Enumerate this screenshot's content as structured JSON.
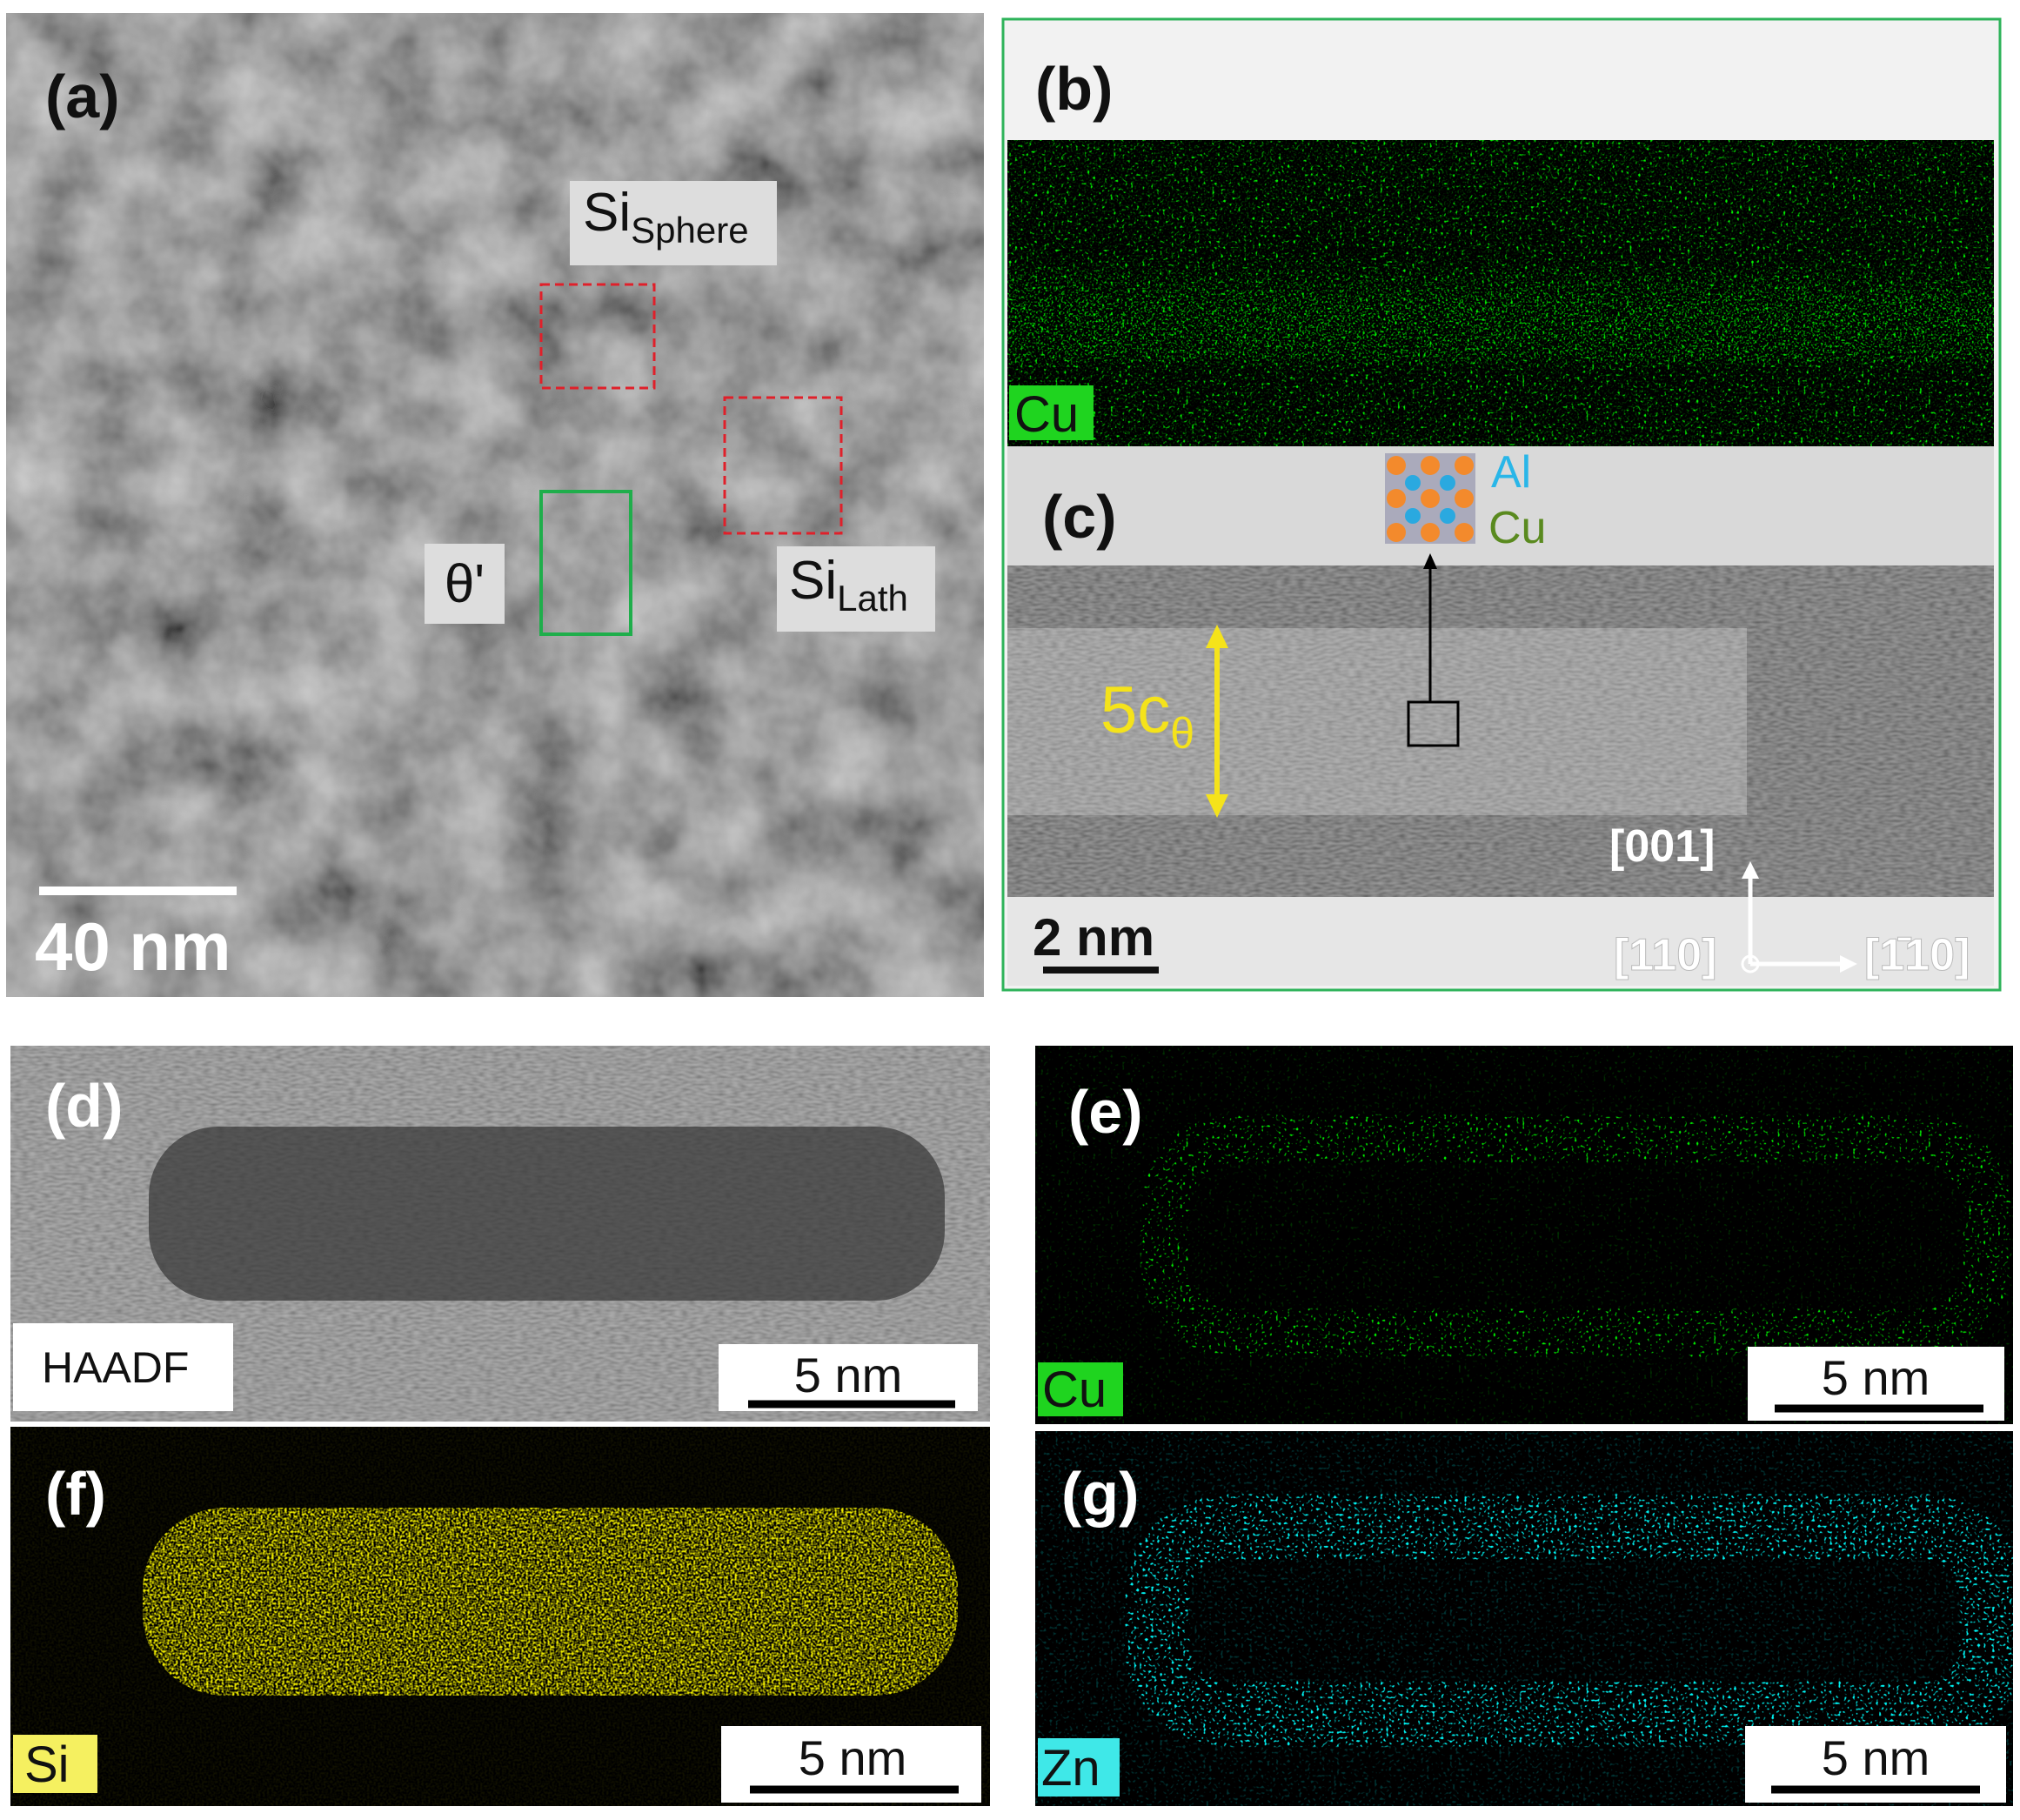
{
  "panels": {
    "a": {
      "label": "(a)",
      "si_sphere": {
        "main": "Si",
        "sub": "Sphere"
      },
      "theta": "θ'",
      "si_lath": {
        "main": "Si",
        "sub": "Lath"
      },
      "scale_bar": "40 nm"
    },
    "b": {
      "label": "(b)",
      "element": "Cu"
    },
    "c": {
      "label": "(c)",
      "legend": [
        "Al",
        "Cu"
      ],
      "spacing": {
        "main": "5c",
        "sub": "θ"
      },
      "directions": [
        "[001]",
        "[110]",
        "[1̄10]"
      ],
      "scale_bar": "2 nm"
    },
    "d": {
      "label": "(d)",
      "mode": "HAADF",
      "scale_bar": "5 nm"
    },
    "e": {
      "label": "(e)",
      "element": "Cu",
      "scale_bar": "5 nm"
    },
    "f": {
      "label": "(f)",
      "element": "Si",
      "scale_bar": "5 nm"
    },
    "g": {
      "label": "(g)",
      "element": "Zn",
      "scale_bar": "5 nm"
    }
  }
}
